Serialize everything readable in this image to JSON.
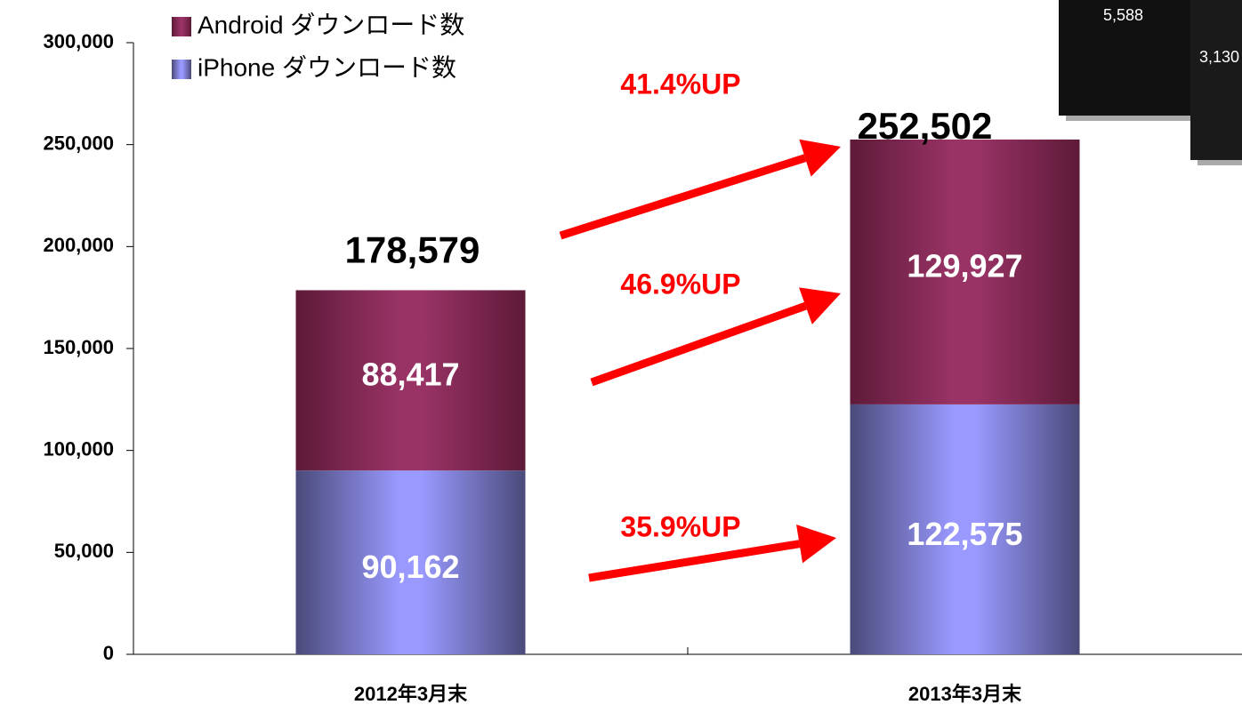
{
  "chart_data": {
    "type": "stacked-bar",
    "categories": [
      "2012年3月末",
      "2013年3月末"
    ],
    "series": [
      {
        "name": "iPhone ダウンロード数",
        "color": "#9999ff",
        "values": [
          90162,
          122575
        ],
        "value_labels": [
          "90,162",
          "122,575"
        ]
      },
      {
        "name": "Android ダウンロード数",
        "color": "#993366",
        "values": [
          88417,
          129927
        ],
        "value_labels": [
          "88,417",
          "129,927"
        ]
      }
    ],
    "totals": {
      "values": [
        178579,
        252502
      ],
      "value_labels": [
        "178,579",
        "252,502"
      ]
    },
    "annotations": [
      "41.4%UP",
      "46.9%UP",
      "35.9%UP"
    ],
    "ylim": [
      0,
      300000
    ],
    "yticks": [
      0,
      {
        "value": 50000,
        "label": "50,000"
      },
      {
        "value": 100000,
        "label": "100,000"
      },
      {
        "value": 150000,
        "label": "150,000"
      },
      {
        "value": 200000,
        "label": "200,000"
      },
      {
        "value": 250000,
        "label": "250,000"
      },
      {
        "value": 300000,
        "label": "300,000"
      }
    ],
    "legend": "top-left",
    "inset_texts": [
      "5,588",
      "3,130"
    ]
  }
}
